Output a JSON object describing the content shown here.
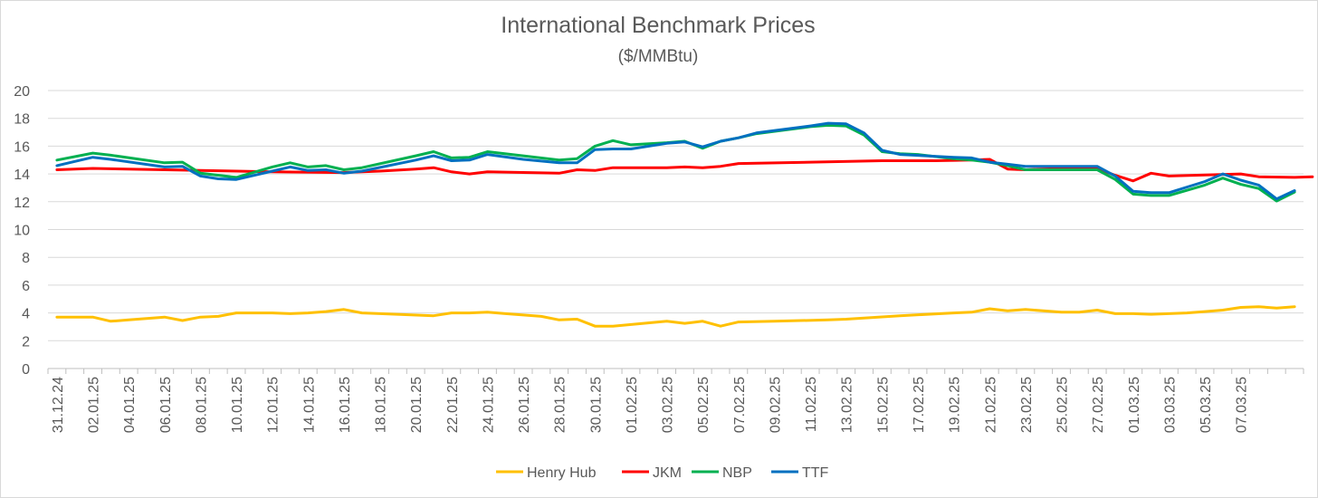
{
  "chart_data": {
    "type": "line",
    "title": "International Benchmark Prices",
    "subtitle": "($/MMBtu)",
    "xlabel": "",
    "ylabel": "",
    "ylim": [
      0,
      20
    ],
    "ytick_step": 2,
    "grid": "horizontal",
    "legend_position": "bottom",
    "x_tick_labels": [
      "31.12.24",
      "02.01.25",
      "04.01.25",
      "06.01.25",
      "08.01.25",
      "10.01.25",
      "12.01.25",
      "14.01.25",
      "16.01.25",
      "18.01.25",
      "20.01.25",
      "22.01.25",
      "24.01.25",
      "26.01.25",
      "28.01.25",
      "30.01.25",
      "01.02.25",
      "03.02.25",
      "05.02.25",
      "07.02.25",
      "09.02.25",
      "11.02.25",
      "13.02.25",
      "15.02.25",
      "17.02.25",
      "19.02.25",
      "21.02.25",
      "23.02.25",
      "25.02.25",
      "27.02.25",
      "01.03.25",
      "03.03.25",
      "05.03.25",
      "07.03.25"
    ],
    "series": [
      {
        "name": "Henry Hub",
        "color": "#ffc000",
        "points": [
          [
            0,
            3.7
          ],
          [
            2,
            3.7
          ],
          [
            3,
            3.4
          ],
          [
            4,
            3.5
          ],
          [
            5,
            3.6
          ],
          [
            6,
            3.7
          ],
          [
            7,
            3.45
          ],
          [
            8,
            3.7
          ],
          [
            9,
            3.75
          ],
          [
            10,
            4.0
          ],
          [
            12,
            4.0
          ],
          [
            13,
            3.95
          ],
          [
            14,
            4.0
          ],
          [
            15,
            4.1
          ],
          [
            16,
            4.25
          ],
          [
            17,
            4.0
          ],
          [
            18,
            3.95
          ],
          [
            21,
            3.8
          ],
          [
            22,
            4.0
          ],
          [
            23,
            4.0
          ],
          [
            24,
            4.05
          ],
          [
            25,
            3.95
          ],
          [
            27,
            3.75
          ],
          [
            28,
            3.5
          ],
          [
            29,
            3.55
          ],
          [
            30,
            3.05
          ],
          [
            31,
            3.05
          ],
          [
            34,
            3.4
          ],
          [
            35,
            3.25
          ],
          [
            36,
            3.4
          ],
          [
            37,
            3.05
          ],
          [
            38,
            3.35
          ],
          [
            40,
            3.4
          ],
          [
            43,
            3.5
          ],
          [
            44,
            3.55
          ],
          [
            47,
            3.8
          ],
          [
            50,
            4.0
          ],
          [
            51,
            4.05
          ],
          [
            52,
            4.3
          ],
          [
            53,
            4.15
          ],
          [
            54,
            4.25
          ],
          [
            56,
            4.05
          ],
          [
            57,
            4.05
          ],
          [
            58,
            4.2
          ],
          [
            59,
            3.95
          ],
          [
            60,
            3.95
          ],
          [
            61,
            3.9
          ],
          [
            62,
            3.95
          ],
          [
            63,
            4.0
          ],
          [
            64,
            4.1
          ],
          [
            65,
            4.2
          ],
          [
            66,
            4.4
          ],
          [
            67,
            4.45
          ],
          [
            68,
            4.35
          ],
          [
            69,
            4.45
          ]
        ]
      },
      {
        "name": "JKM",
        "color": "#ff0000",
        "points": [
          [
            0,
            14.3
          ],
          [
            2,
            14.4
          ],
          [
            6,
            14.3
          ],
          [
            8,
            14.25
          ],
          [
            10,
            14.2
          ],
          [
            12,
            14.15
          ],
          [
            16,
            14.1
          ],
          [
            18,
            14.2
          ],
          [
            20,
            14.35
          ],
          [
            21,
            14.45
          ],
          [
            22,
            14.15
          ],
          [
            23,
            14.0
          ],
          [
            24,
            14.15
          ],
          [
            28,
            14.05
          ],
          [
            29,
            14.3
          ],
          [
            30,
            14.25
          ],
          [
            31,
            14.45
          ],
          [
            34,
            14.45
          ],
          [
            35,
            14.5
          ],
          [
            36,
            14.45
          ],
          [
            37,
            14.55
          ],
          [
            38,
            14.75
          ],
          [
            42,
            14.85
          ],
          [
            46,
            14.95
          ],
          [
            49,
            14.95
          ],
          [
            51,
            15.0
          ],
          [
            52,
            15.05
          ],
          [
            53,
            14.35
          ],
          [
            54,
            14.3
          ],
          [
            55,
            14.35
          ],
          [
            57,
            14.45
          ],
          [
            58,
            14.4
          ],
          [
            59,
            13.9
          ],
          [
            60,
            13.5
          ],
          [
            61,
            14.05
          ],
          [
            62,
            13.85
          ],
          [
            66,
            14.0
          ],
          [
            67,
            13.8
          ],
          [
            69,
            13.75
          ],
          [
            70,
            13.8
          ]
        ]
      },
      {
        "name": "NBP",
        "color": "#00b050",
        "points": [
          [
            0,
            15.0
          ],
          [
            2,
            15.5
          ],
          [
            3,
            15.35
          ],
          [
            6,
            14.8
          ],
          [
            7,
            14.85
          ],
          [
            8,
            14.05
          ],
          [
            10,
            13.75
          ],
          [
            12,
            14.5
          ],
          [
            13,
            14.8
          ],
          [
            14,
            14.5
          ],
          [
            15,
            14.6
          ],
          [
            16,
            14.3
          ],
          [
            17,
            14.45
          ],
          [
            20,
            15.3
          ],
          [
            21,
            15.6
          ],
          [
            22,
            15.15
          ],
          [
            23,
            15.2
          ],
          [
            24,
            15.6
          ],
          [
            26,
            15.3
          ],
          [
            28,
            15.0
          ],
          [
            29,
            15.1
          ],
          [
            30,
            16.0
          ],
          [
            31,
            16.4
          ],
          [
            32,
            16.1
          ],
          [
            34,
            16.25
          ],
          [
            35,
            16.35
          ],
          [
            36,
            15.85
          ],
          [
            37,
            16.35
          ],
          [
            38,
            16.6
          ],
          [
            39,
            16.9
          ],
          [
            42,
            17.4
          ],
          [
            43,
            17.5
          ],
          [
            44,
            17.45
          ],
          [
            45,
            16.8
          ],
          [
            46,
            15.6
          ],
          [
            47,
            15.45
          ],
          [
            48,
            15.4
          ],
          [
            50,
            15.1
          ],
          [
            51,
            15.0
          ],
          [
            52,
            14.85
          ],
          [
            53,
            14.6
          ],
          [
            54,
            14.3
          ],
          [
            58,
            14.3
          ],
          [
            59,
            13.6
          ],
          [
            60,
            12.55
          ],
          [
            61,
            12.45
          ],
          [
            62,
            12.45
          ],
          [
            64,
            13.2
          ],
          [
            65,
            13.7
          ],
          [
            66,
            13.25
          ],
          [
            67,
            12.95
          ],
          [
            68,
            12.05
          ],
          [
            69,
            12.7
          ]
        ]
      },
      {
        "name": "TTF",
        "color": "#0070c0",
        "points": [
          [
            0,
            14.6
          ],
          [
            2,
            15.2
          ],
          [
            3,
            15.05
          ],
          [
            6,
            14.5
          ],
          [
            7,
            14.55
          ],
          [
            8,
            13.85
          ],
          [
            9,
            13.65
          ],
          [
            10,
            13.6
          ],
          [
            12,
            14.2
          ],
          [
            13,
            14.5
          ],
          [
            14,
            14.25
          ],
          [
            15,
            14.3
          ],
          [
            16,
            14.05
          ],
          [
            17,
            14.2
          ],
          [
            20,
            15.0
          ],
          [
            21,
            15.3
          ],
          [
            22,
            14.95
          ],
          [
            23,
            15.0
          ],
          [
            24,
            15.4
          ],
          [
            26,
            15.05
          ],
          [
            28,
            14.8
          ],
          [
            29,
            14.8
          ],
          [
            30,
            15.75
          ],
          [
            31,
            15.8
          ],
          [
            32,
            15.8
          ],
          [
            34,
            16.2
          ],
          [
            35,
            16.3
          ],
          [
            36,
            15.95
          ],
          [
            37,
            16.35
          ],
          [
            38,
            16.6
          ],
          [
            39,
            16.95
          ],
          [
            42,
            17.45
          ],
          [
            43,
            17.65
          ],
          [
            44,
            17.6
          ],
          [
            45,
            16.95
          ],
          [
            46,
            15.7
          ],
          [
            47,
            15.4
          ],
          [
            50,
            15.2
          ],
          [
            51,
            15.15
          ],
          [
            52,
            14.85
          ],
          [
            53,
            14.7
          ],
          [
            54,
            14.55
          ],
          [
            58,
            14.55
          ],
          [
            59,
            13.85
          ],
          [
            60,
            12.75
          ],
          [
            61,
            12.65
          ],
          [
            62,
            12.65
          ],
          [
            64,
            13.45
          ],
          [
            65,
            14.0
          ],
          [
            66,
            13.55
          ],
          [
            67,
            13.2
          ],
          [
            68,
            12.2
          ],
          [
            69,
            12.8
          ]
        ]
      }
    ]
  }
}
